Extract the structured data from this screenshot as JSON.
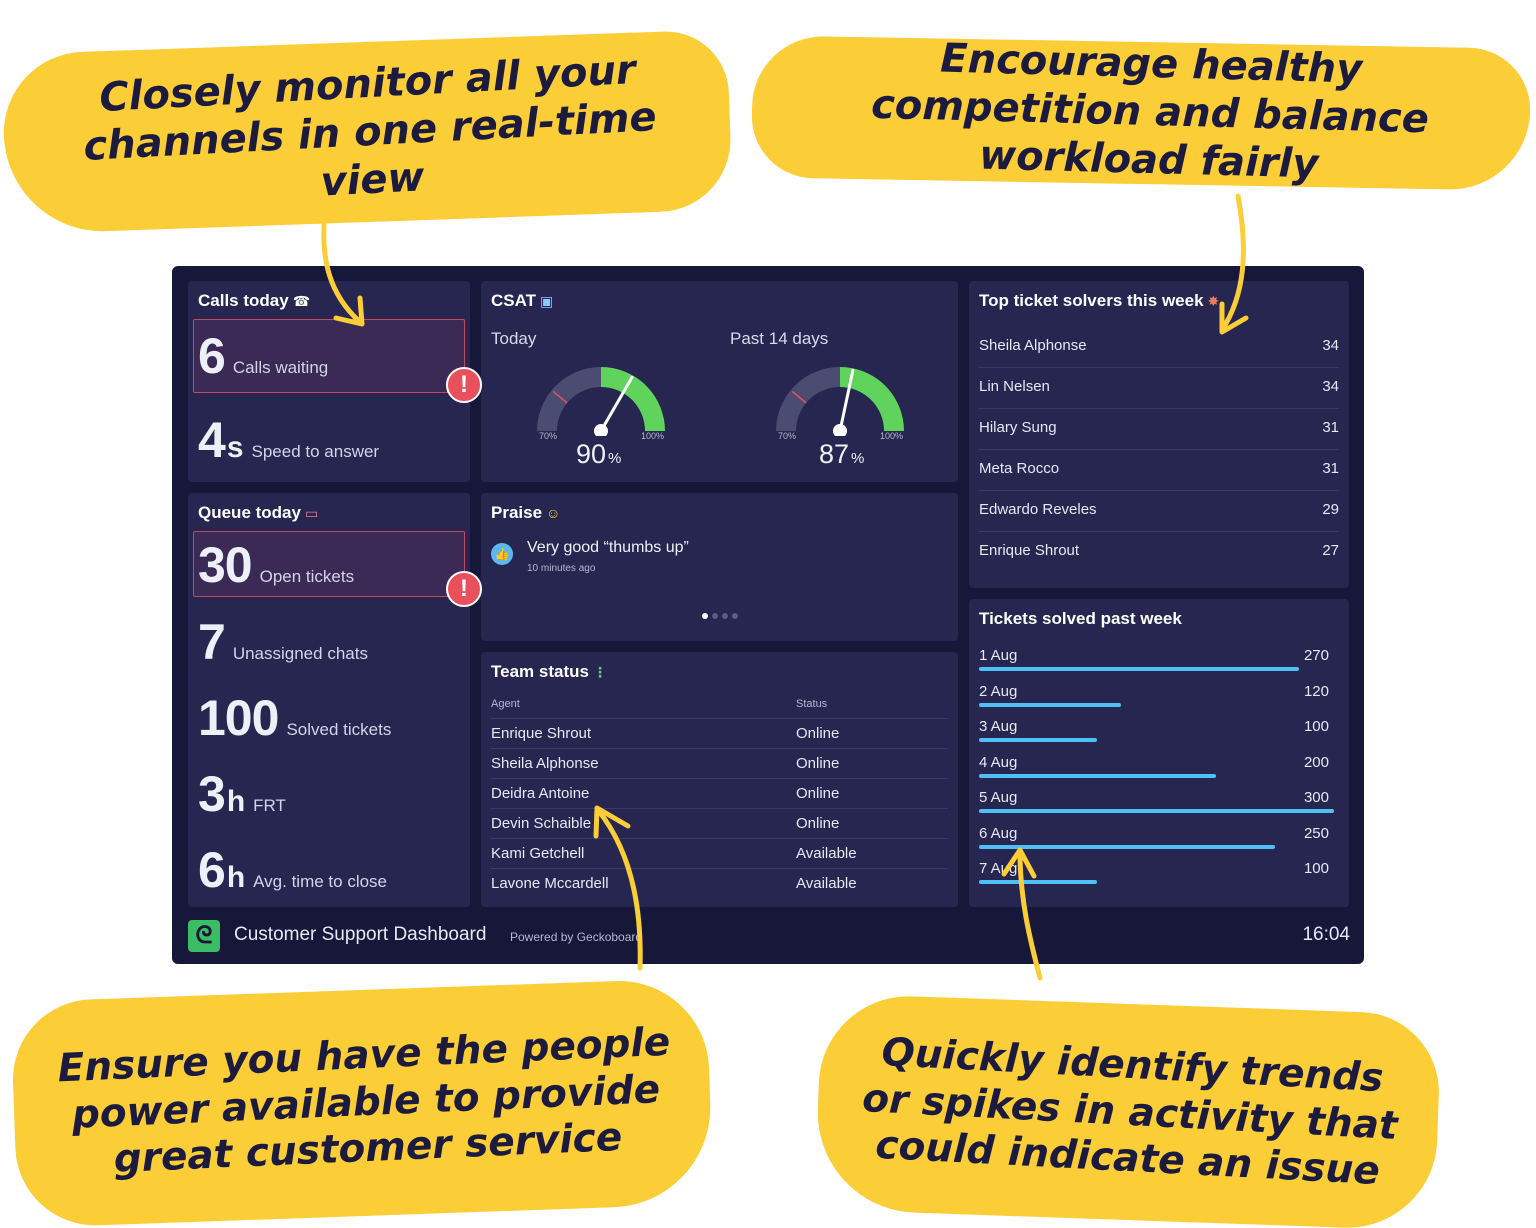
{
  "callouts": {
    "top_left": "Closely monitor all your channels in one real-time view",
    "top_right": "Encourage healthy competition and balance workload fairly",
    "bottom_left": "Ensure you have the people power available to provide great customer service",
    "bottom_right": "Quickly identify trends or spikes in activity that could indicate an issue"
  },
  "calls": {
    "title": "Calls today",
    "icon": "telephone-icon",
    "waiting_value": "6",
    "waiting_label": "Calls waiting",
    "speed_value": "4",
    "speed_unit": "s",
    "speed_label": "Speed to answer"
  },
  "queue": {
    "title": "Queue today",
    "icon": "ticket-icon",
    "open_value": "30",
    "open_label": "Open tickets",
    "unassigned_value": "7",
    "unassigned_label": "Unassigned chats",
    "solved_value": "100",
    "solved_label": "Solved tickets",
    "frt_value": "3",
    "frt_unit": "h",
    "frt_label": "FRT",
    "close_value": "6",
    "close_unit": "h",
    "close_label": "Avg. time to close"
  },
  "csat": {
    "title": "CSAT",
    "icon": "ballot-box-icon",
    "gauges": [
      {
        "label": "Today",
        "value": 90,
        "value_text": "90",
        "unit": "%",
        "min": "70",
        "max": "100",
        "min_value": 70,
        "max_value": 100
      },
      {
        "label": "Past 14 days",
        "value": 87,
        "value_text": "87",
        "unit": "%",
        "min": "70",
        "max": "100",
        "min_value": 70,
        "max_value": 100
      }
    ],
    "tick_unit": "%",
    "colors": {
      "good": "#5fd35c",
      "track": "#4b4c72",
      "marker": "#e8515c"
    }
  },
  "praise": {
    "title": "Praise",
    "icon": "star-struck-icon",
    "message": "Very good “thumbs up”",
    "time": "10 minutes ago"
  },
  "team": {
    "title": "Team status",
    "icon": "traffic-light-icon",
    "col_agent": "Agent",
    "col_status": "Status",
    "rows": [
      {
        "agent": "Enrique Shrout",
        "status": "Online"
      },
      {
        "agent": "Sheila Alphonse",
        "status": "Online"
      },
      {
        "agent": "Deidra Antoine",
        "status": "Online"
      },
      {
        "agent": "Devin Schaible",
        "status": "Online"
      },
      {
        "agent": "Kami Getchell",
        "status": "Available"
      },
      {
        "agent": "Lavone Mccardell",
        "status": "Available"
      }
    ]
  },
  "leaderboard": {
    "title": "Top ticket solvers this week",
    "icon": "collision-icon",
    "rows": [
      {
        "name": "Sheila Alphonse",
        "value": "34"
      },
      {
        "name": "Lin Nelsen",
        "value": "34"
      },
      {
        "name": "Hilary Sung",
        "value": "31"
      },
      {
        "name": "Meta Rocco",
        "value": "31"
      },
      {
        "name": "Edwardo Reveles",
        "value": "29"
      },
      {
        "name": "Enrique Shrout",
        "value": "27"
      }
    ]
  },
  "chart_data": {
    "type": "bar",
    "title": "Tickets solved past week",
    "categories": [
      "1 Aug",
      "2 Aug",
      "3 Aug",
      "4 Aug",
      "5 Aug",
      "6 Aug",
      "7 Aug"
    ],
    "values": [
      270,
      120,
      100,
      200,
      300,
      250,
      100
    ],
    "ylim": [
      0,
      300
    ],
    "bar_color": "#4fc0f5",
    "orientation": "horizontal"
  },
  "footer": {
    "title": "Customer Support Dashboard",
    "powered": "Powered by Geckoboard",
    "clock": "16:04"
  }
}
